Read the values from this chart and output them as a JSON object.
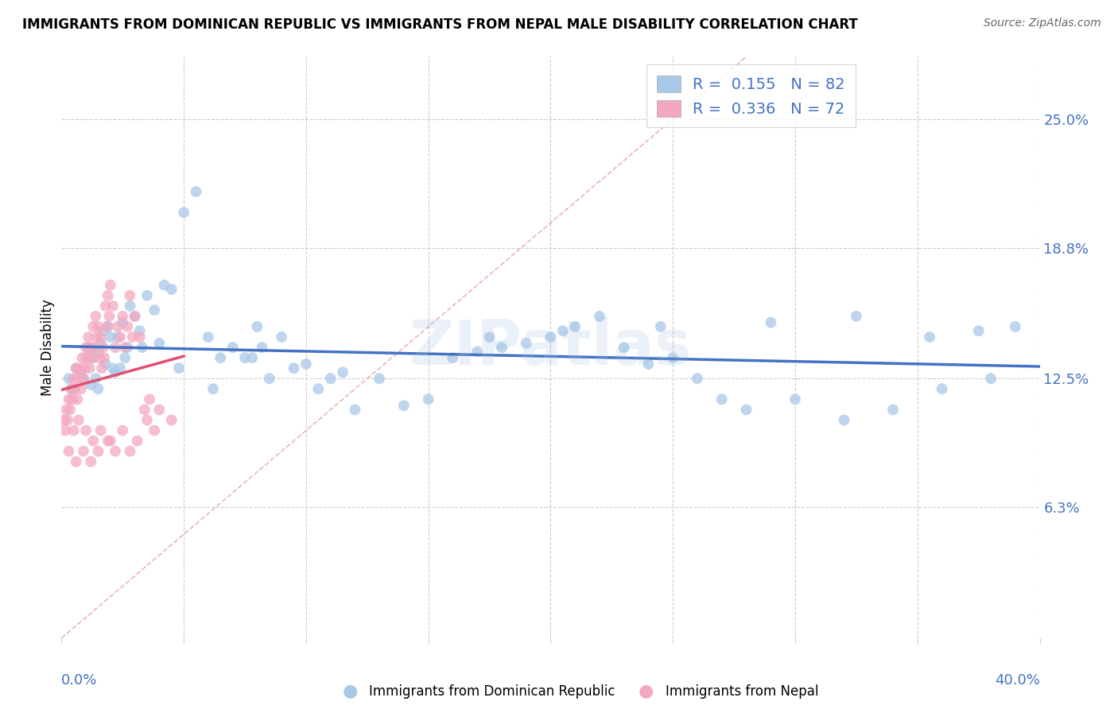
{
  "title": "IMMIGRANTS FROM DOMINICAN REPUBLIC VS IMMIGRANTS FROM NEPAL MALE DISABILITY CORRELATION CHART",
  "source": "Source: ZipAtlas.com",
  "ylabel": "Male Disability",
  "ytick_values": [
    6.3,
    12.5,
    18.8,
    25.0
  ],
  "xlim": [
    0.0,
    40.0
  ],
  "ylim": [
    0.0,
    28.0
  ],
  "legend_R1": "0.155",
  "legend_N1": "82",
  "legend_R2": "0.336",
  "legend_N2": "72",
  "color_blue": "#a8c8e8",
  "color_pink": "#f4a8c0",
  "line_blue": "#4472c4",
  "line_pink": "#e05070",
  "line_diag_color": "#e8a0a0",
  "watermark": "ZIPatlas",
  "blue_x": [
    0.3,
    0.5,
    0.6,
    0.8,
    1.0,
    1.1,
    1.2,
    1.4,
    1.5,
    1.6,
    1.7,
    1.8,
    1.9,
    2.0,
    2.1,
    2.2,
    2.3,
    2.5,
    2.6,
    2.7,
    2.8,
    3.0,
    3.2,
    3.5,
    3.8,
    4.0,
    4.2,
    4.5,
    5.0,
    5.5,
    6.0,
    6.5,
    7.0,
    7.5,
    8.0,
    8.5,
    9.0,
    9.5,
    10.0,
    10.5,
    11.0,
    11.5,
    12.0,
    13.0,
    14.0,
    15.0,
    16.0,
    17.0,
    18.0,
    19.0,
    20.0,
    21.0,
    22.0,
    23.0,
    24.0,
    25.0,
    26.0,
    27.0,
    28.0,
    30.0,
    32.0,
    34.0,
    36.0,
    38.0,
    1.3,
    1.5,
    2.4,
    3.3,
    4.8,
    6.2,
    7.8,
    8.2,
    17.5,
    20.5,
    24.5,
    29.0,
    32.5,
    35.5,
    37.5,
    39.0,
    0.4,
    0.9
  ],
  "blue_y": [
    12.5,
    12.0,
    13.0,
    12.8,
    13.5,
    14.0,
    12.2,
    12.5,
    13.8,
    14.2,
    14.8,
    13.2,
    15.0,
    14.5,
    13.0,
    12.8,
    14.5,
    15.2,
    13.5,
    14.0,
    16.0,
    15.5,
    14.8,
    16.5,
    15.8,
    14.2,
    17.0,
    16.8,
    20.5,
    21.5,
    14.5,
    13.5,
    14.0,
    13.5,
    15.0,
    12.5,
    14.5,
    13.0,
    13.2,
    12.0,
    12.5,
    12.8,
    11.0,
    12.5,
    11.2,
    11.5,
    13.5,
    13.8,
    14.0,
    14.2,
    14.5,
    15.0,
    15.5,
    14.0,
    13.2,
    13.5,
    12.5,
    11.5,
    11.0,
    11.5,
    10.5,
    11.0,
    12.0,
    12.5,
    13.5,
    12.0,
    13.0,
    14.0,
    13.0,
    12.0,
    13.5,
    14.0,
    14.5,
    14.8,
    15.0,
    15.2,
    15.5,
    14.5,
    14.8,
    15.0,
    12.0,
    12.5
  ],
  "pink_x": [
    0.1,
    0.15,
    0.2,
    0.25,
    0.3,
    0.35,
    0.4,
    0.45,
    0.5,
    0.55,
    0.6,
    0.65,
    0.7,
    0.75,
    0.8,
    0.85,
    0.9,
    0.95,
    1.0,
    1.05,
    1.1,
    1.15,
    1.2,
    1.25,
    1.3,
    1.35,
    1.4,
    1.45,
    1.5,
    1.55,
    1.6,
    1.65,
    1.7,
    1.75,
    1.8,
    1.85,
    1.9,
    1.95,
    2.0,
    2.1,
    2.2,
    2.3,
    2.4,
    2.5,
    2.6,
    2.7,
    2.8,
    2.9,
    3.0,
    3.2,
    3.4,
    3.6,
    3.8,
    4.0,
    4.5,
    0.5,
    0.7,
    1.0,
    1.3,
    1.6,
    1.9,
    2.2,
    2.5,
    2.8,
    3.1,
    3.5,
    0.3,
    0.6,
    0.9,
    1.2,
    1.5,
    2.0
  ],
  "pink_y": [
    10.5,
    10.0,
    11.0,
    10.5,
    11.5,
    11.0,
    12.0,
    11.5,
    12.5,
    12.0,
    13.0,
    11.5,
    12.5,
    13.0,
    12.0,
    13.5,
    12.5,
    13.0,
    14.0,
    13.5,
    14.5,
    13.0,
    14.0,
    13.5,
    15.0,
    14.0,
    15.5,
    14.5,
    15.0,
    13.5,
    14.5,
    13.0,
    14.0,
    13.5,
    16.0,
    15.0,
    16.5,
    15.5,
    17.0,
    16.0,
    14.0,
    15.0,
    14.5,
    15.5,
    14.0,
    15.0,
    16.5,
    14.5,
    15.5,
    14.5,
    11.0,
    11.5,
    10.0,
    11.0,
    10.5,
    10.0,
    10.5,
    10.0,
    9.5,
    10.0,
    9.5,
    9.0,
    10.0,
    9.0,
    9.5,
    10.5,
    9.0,
    8.5,
    9.0,
    8.5,
    9.0,
    9.5
  ]
}
